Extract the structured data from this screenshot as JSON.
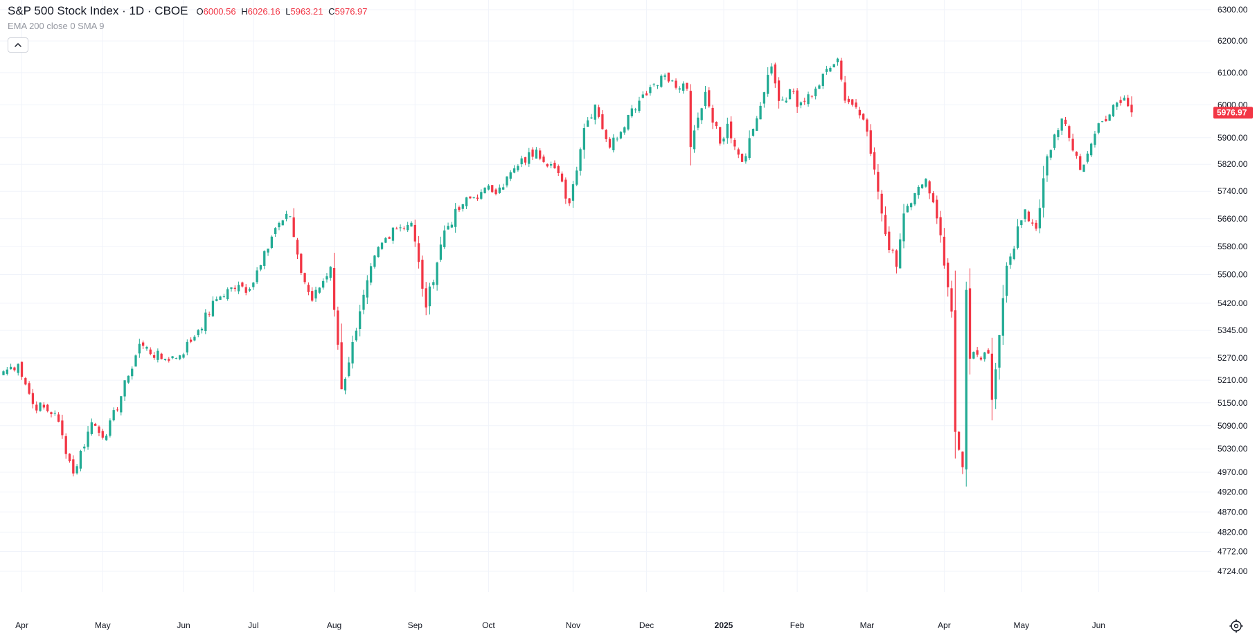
{
  "legend": {
    "title": "S&P 500 Stock Index · 1D · CBOE",
    "o_label": "O",
    "o_value": "6000.56",
    "h_label": "H",
    "h_value": "6026.16",
    "l_label": "L",
    "l_value": "5963.21",
    "c_label": "C",
    "c_value": "5976.97",
    "indicators": "EMA 200 close 0 SMA 9"
  },
  "colors": {
    "up": "#22ab94",
    "down": "#f23645",
    "grid": "#f0f3fa",
    "text": "#131722"
  },
  "icons": {
    "collapse": "chevron-up-icon",
    "settings": "gear-icon"
  },
  "chart_data": {
    "type": "candlestick",
    "title": "S&P 500 Stock Index · 1D · CBOE",
    "last_price": 5976.97,
    "last_price_label": "5976.97",
    "y_axis_ticks": [
      4724,
      4772,
      4820,
      4870,
      4920,
      4970,
      5030,
      5090,
      5150,
      5210,
      5270,
      5345,
      5420,
      5500,
      5580,
      5660,
      5740,
      5820,
      5900,
      6000,
      6100,
      6200,
      6300
    ],
    "y_axis_labels": [
      "4724.00",
      "4772.00",
      "4820.00",
      "4870.00",
      "4920.00",
      "4970.00",
      "5030.00",
      "5090.00",
      "5150.00",
      "5210.00",
      "5270.00",
      "5345.00",
      "5420.00",
      "5500.00",
      "5580.00",
      "5660.00",
      "5740.00",
      "5820.00",
      "5900.00",
      "6000.00",
      "6100.00",
      "6200.00",
      "6300.00"
    ],
    "y_scale": "log",
    "x_axis_labels": [
      {
        "label": "Apr",
        "date": "2024-04-01"
      },
      {
        "label": "May",
        "date": "2024-05-01"
      },
      {
        "label": "Jun",
        "date": "2024-06-03"
      },
      {
        "label": "Jul",
        "date": "2024-07-01"
      },
      {
        "label": "Aug",
        "date": "2024-08-01"
      },
      {
        "label": "Sep",
        "date": "2024-09-03"
      },
      {
        "label": "Oct",
        "date": "2024-10-01"
      },
      {
        "label": "Nov",
        "date": "2024-11-01"
      },
      {
        "label": "Dec",
        "date": "2024-12-02"
      },
      {
        "label": "2025",
        "date": "2025-01-02"
      },
      {
        "label": "Feb",
        "date": "2025-02-03"
      },
      {
        "label": "Mar",
        "date": "2025-03-03"
      },
      {
        "label": "Apr",
        "date": "2025-04-01"
      },
      {
        "label": "May",
        "date": "2025-05-01"
      },
      {
        "label": "Jun",
        "date": "2025-06-02"
      }
    ],
    "grid": true,
    "anchors": [
      [
        "2024-03-22",
        5234
      ],
      [
        "2024-03-28",
        5254
      ],
      [
        "2024-04-04",
        5147
      ],
      [
        "2024-04-12",
        5123
      ],
      [
        "2024-04-19",
        4967
      ],
      [
        "2024-04-26",
        5099
      ],
      [
        "2024-05-02",
        5064
      ],
      [
        "2024-05-10",
        5222
      ],
      [
        "2024-05-15",
        5308
      ],
      [
        "2024-05-23",
        5267
      ],
      [
        "2024-05-31",
        5277
      ],
      [
        "2024-06-07",
        5346
      ],
      [
        "2024-06-14",
        5431
      ],
      [
        "2024-06-21",
        5464
      ],
      [
        "2024-06-28",
        5460
      ],
      [
        "2024-07-05",
        5567
      ],
      [
        "2024-07-10",
        5633
      ],
      [
        "2024-07-16",
        5667
      ],
      [
        "2024-07-19",
        5505
      ],
      [
        "2024-07-24",
        5427
      ],
      [
        "2024-07-31",
        5522
      ],
      [
        "2024-08-05",
        5186
      ],
      [
        "2024-08-09",
        5344
      ],
      [
        "2024-08-16",
        5554
      ],
      [
        "2024-08-23",
        5634
      ],
      [
        "2024-08-30",
        5648
      ],
      [
        "2024-09-06",
        5408
      ],
      [
        "2024-09-13",
        5626
      ],
      [
        "2024-09-20",
        5702
      ],
      [
        "2024-09-27",
        5738
      ],
      [
        "2024-10-04",
        5751
      ],
      [
        "2024-10-11",
        5815
      ],
      [
        "2024-10-18",
        5864
      ],
      [
        "2024-10-25",
        5808
      ],
      [
        "2024-10-31",
        5705
      ],
      [
        "2024-11-06",
        5929
      ],
      [
        "2024-11-11",
        6001
      ],
      [
        "2024-11-15",
        5870
      ],
      [
        "2024-11-22",
        5969
      ],
      [
        "2024-11-29",
        6032
      ],
      [
        "2024-12-06",
        6090
      ],
      [
        "2024-12-13",
        6051
      ],
      [
        "2024-12-17",
        6050
      ],
      [
        "2024-12-18",
        5872
      ],
      [
        "2024-12-24",
        6040
      ],
      [
        "2024-12-31",
        5882
      ],
      [
        "2025-01-03",
        5942
      ],
      [
        "2025-01-10",
        5827
      ],
      [
        "2025-01-17",
        5997
      ],
      [
        "2025-01-23",
        6119
      ],
      [
        "2025-01-27",
        6012
      ],
      [
        "2025-01-31",
        6041
      ],
      [
        "2025-02-03",
        5994
      ],
      [
        "2025-02-07",
        6026
      ],
      [
        "2025-02-14",
        6115
      ],
      [
        "2025-02-19",
        6144
      ],
      [
        "2025-02-21",
        6013
      ],
      [
        "2025-02-28",
        5955
      ],
      [
        "2025-03-06",
        5739
      ],
      [
        "2025-03-10",
        5615
      ],
      [
        "2025-03-13",
        5522
      ],
      [
        "2025-03-17",
        5675
      ],
      [
        "2025-03-25",
        5777
      ],
      [
        "2025-03-31",
        5612
      ],
      [
        "2025-04-03",
        5397
      ],
      [
        "2025-04-04",
        5074
      ],
      [
        "2025-04-08",
        4983
      ],
      [
        "2025-04-09",
        5457
      ],
      [
        "2025-04-10",
        5268
      ],
      [
        "2025-04-17",
        5282
      ],
      [
        "2025-04-21",
        5158
      ],
      [
        "2025-04-25",
        5525
      ],
      [
        "2025-05-02",
        5687
      ],
      [
        "2025-05-07",
        5631
      ],
      [
        "2025-05-12",
        5844
      ],
      [
        "2025-05-16",
        5958
      ],
      [
        "2025-05-23",
        5803
      ],
      [
        "2025-05-30",
        5912
      ],
      [
        "2025-06-06",
        6000
      ],
      [
        "2025-06-11",
        6022
      ],
      [
        "2025-06-13",
        5976.97
      ]
    ]
  }
}
